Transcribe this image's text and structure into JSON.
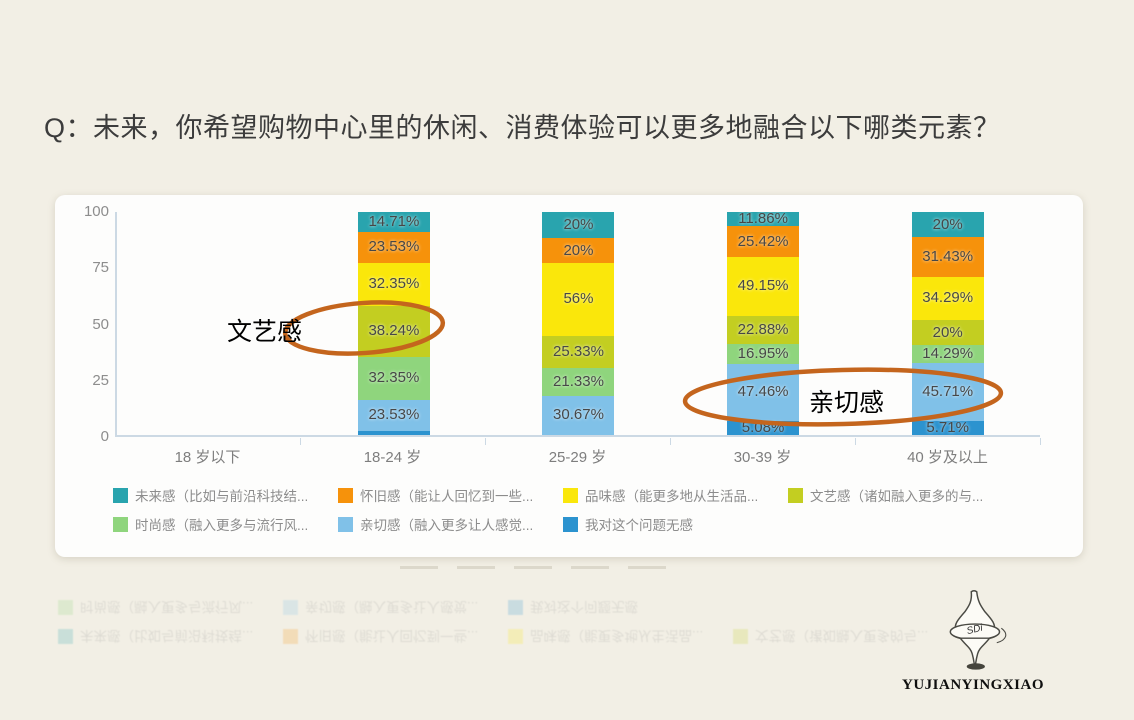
{
  "page": {
    "title": "Q：未来，你希望购物中心里的休闲、消费体验可以更多地融合以下哪类元素？",
    "background": "#F2EFE5"
  },
  "chart_data": {
    "type": "bar",
    "stacked": true,
    "normalized_to_100_percent_height": true,
    "title": "",
    "xlabel": "",
    "ylabel": "",
    "ylim": [
      0,
      100
    ],
    "y_ticks": [
      "100",
      "75",
      "50",
      "25",
      "0"
    ],
    "grid": false,
    "legend_position": "bottom",
    "categories": [
      "18 岁以下",
      "18-24 岁",
      "25-29 岁",
      "30-39 岁",
      "40 岁及以上"
    ],
    "series": [
      {
        "name": "未来感（比如与前沿科技结...",
        "color": "#29A4AE",
        "values": [
          0,
          14.71,
          20,
          11.86,
          20
        ],
        "labels": [
          "",
          "14.71%",
          "20%",
          "11.86%",
          "20%"
        ]
      },
      {
        "name": "怀旧感（能让人回忆到一些...",
        "color": "#F6920B",
        "values": [
          0,
          23.53,
          20,
          25.42,
          31.43
        ],
        "labels": [
          "",
          "23.53%",
          "20%",
          "25.42%",
          "31.43%"
        ]
      },
      {
        "name": "品味感（能更多地从生活品...",
        "color": "#FAE70B",
        "values": [
          0,
          32.35,
          56,
          49.15,
          34.29
        ],
        "labels": [
          "",
          "32.35%",
          "56%",
          "49.15%",
          "34.29%"
        ]
      },
      {
        "name": "文艺感（诸如融入更多的与...",
        "color": "#C3CE21",
        "values": [
          0,
          38.24,
          25.33,
          22.88,
          20
        ],
        "labels": [
          "",
          "38.24%",
          "25.33%",
          "22.88%",
          "20%"
        ]
      },
      {
        "name": "时尚感（融入更多与流行风...",
        "color": "#8FD57D",
        "values": [
          0,
          32.35,
          21.33,
          16.95,
          14.29
        ],
        "labels": [
          "",
          "32.35%",
          "21.33%",
          "16.95%",
          "14.29%"
        ]
      },
      {
        "name": "亲切感（融入更多让人感觉...",
        "color": "#80C1E8",
        "values": [
          0,
          23.53,
          30.67,
          47.46,
          45.71
        ],
        "labels": [
          "",
          "23.53%",
          "30.67%",
          "47.46%",
          "45.71%"
        ]
      },
      {
        "name": "我对这个问题无感",
        "color": "#2C93CF",
        "values": [
          0,
          2.94,
          0,
          5.08,
          5.71
        ],
        "labels": [
          "",
          "",
          "",
          "5.08%",
          "5.71%"
        ]
      }
    ],
    "legend_rows": [
      [
        0,
        1,
        2,
        3
      ],
      [
        4,
        5,
        6
      ]
    ],
    "notes": "18 岁以下 column has no data"
  },
  "annotations": {
    "artsy_label": "文艺感",
    "friendly_label": "亲切感",
    "ellipse_color": "#C4651D"
  },
  "logo": {
    "totem_text": "SDi",
    "brand": "YUJIANYINGXIAO"
  }
}
